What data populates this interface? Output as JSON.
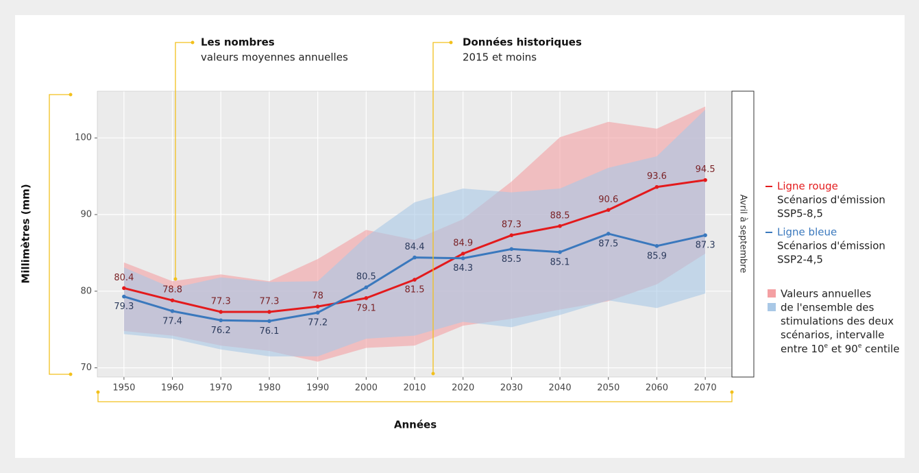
{
  "chart_data": {
    "type": "line",
    "x_label": "Années",
    "y_label": "Millimètres (mm)",
    "strip_label": "Avril à septembre",
    "x": [
      1950,
      1960,
      1970,
      1980,
      1990,
      2000,
      2010,
      2020,
      2030,
      2040,
      2050,
      2060,
      2070
    ],
    "xlim": [
      1944.5,
      2075.5
    ],
    "xticks": [
      1950,
      1960,
      1970,
      1980,
      1990,
      2000,
      2010,
      2020,
      2030,
      2040,
      2050,
      2060,
      2070
    ],
    "ylim": [
      68.8,
      106.1
    ],
    "yticks": [
      70,
      80,
      90,
      100
    ],
    "grid": true,
    "series": [
      {
        "name": "Ligne rouge",
        "color": "#e31a1c",
        "label_color": "#7a2226",
        "values": [
          80.4,
          78.8,
          77.3,
          77.3,
          78,
          79.1,
          81.5,
          84.9,
          87.3,
          88.5,
          90.6,
          93.6,
          94.5
        ],
        "band_color": "#f4a0a3",
        "band_upper": [
          83.75,
          81.3,
          82.2,
          81.3,
          84.2,
          88.0,
          86.7,
          89.4,
          94.3,
          100.1,
          102.1,
          101.2,
          104.1
        ],
        "band_lower": [
          74.8,
          74.2,
          72.9,
          72.2,
          70.8,
          72.6,
          72.9,
          75.5,
          76.4,
          77.6,
          78.7,
          80.9,
          84.9
        ]
      },
      {
        "name": "Ligne bleue",
        "color": "#3a78bd",
        "label_color": "#2b3a5c",
        "values": [
          79.3,
          77.4,
          76.2,
          76.1,
          77.2,
          80.5,
          84.4,
          84.3,
          85.5,
          85.1,
          87.5,
          85.9,
          87.3
        ],
        "band_color": "#a9c8e6",
        "band_upper": [
          83.1,
          80.4,
          81.8,
          81.2,
          81.3,
          87.1,
          91.6,
          93.4,
          92.9,
          93.4,
          96.1,
          97.6,
          103.7
        ],
        "band_lower": [
          74.4,
          73.8,
          72.4,
          71.5,
          71.5,
          73.8,
          74.2,
          76.0,
          75.3,
          76.9,
          78.8,
          77.8,
          79.7
        ]
      }
    ],
    "annotations": [
      {
        "title": "Les nombres",
        "text": "valeurs moyennes annuelles"
      },
      {
        "title": "Données historiques",
        "text": "2015 et moins"
      }
    ],
    "legend": [
      {
        "title": "Ligne rouge",
        "lines": [
          "Scénarios d'émission",
          "SSP5-8,5"
        ]
      },
      {
        "title": "Ligne bleue",
        "lines": [
          "Scénarios d'émission",
          "SSP2-4,5"
        ]
      },
      {
        "lines": [
          "Valeurs annuelles",
          "de l'ensemble des",
          "stimulations des deux",
          "scénarios, intervalle"
        ],
        "last_line": [
          "entre 10",
          "e",
          " et 90",
          "e",
          " centile"
        ]
      }
    ]
  }
}
